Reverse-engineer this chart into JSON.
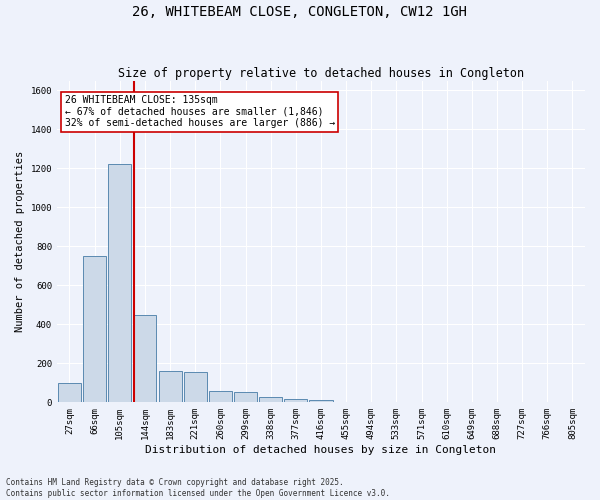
{
  "title": "26, WHITEBEAM CLOSE, CONGLETON, CW12 1GH",
  "subtitle": "Size of property relative to detached houses in Congleton",
  "xlabel": "Distribution of detached houses by size in Congleton",
  "ylabel": "Number of detached properties",
  "bar_color": "#ccd9e8",
  "bar_edge_color": "#5a8ab0",
  "background_color": "#eef2fb",
  "grid_color": "#ffffff",
  "categories": [
    "27sqm",
    "66sqm",
    "105sqm",
    "144sqm",
    "183sqm",
    "221sqm",
    "260sqm",
    "299sqm",
    "338sqm",
    "377sqm",
    "416sqm",
    "455sqm",
    "494sqm",
    "533sqm",
    "571sqm",
    "610sqm",
    "649sqm",
    "688sqm",
    "727sqm",
    "766sqm",
    "805sqm"
  ],
  "values": [
    100,
    750,
    1220,
    450,
    160,
    155,
    60,
    55,
    28,
    18,
    10,
    2,
    1,
    0,
    0,
    0,
    0,
    0,
    0,
    0,
    0
  ],
  "property_line_bin": 2.55,
  "annotation_text": "26 WHITEBEAM CLOSE: 135sqm\n← 67% of detached houses are smaller (1,846)\n32% of semi-detached houses are larger (886) →",
  "annotation_box_color": "#ffffff",
  "annotation_box_edge_color": "#cc0000",
  "red_line_color": "#cc0000",
  "ylim": [
    0,
    1650
  ],
  "yticks": [
    0,
    200,
    400,
    600,
    800,
    1000,
    1200,
    1400,
    1600
  ],
  "footer_line1": "Contains HM Land Registry data © Crown copyright and database right 2025.",
  "footer_line2": "Contains public sector information licensed under the Open Government Licence v3.0.",
  "title_fontsize": 10,
  "subtitle_fontsize": 8.5,
  "xlabel_fontsize": 8,
  "ylabel_fontsize": 7.5,
  "tick_fontsize": 6.5,
  "annot_fontsize": 7,
  "footer_fontsize": 5.5
}
